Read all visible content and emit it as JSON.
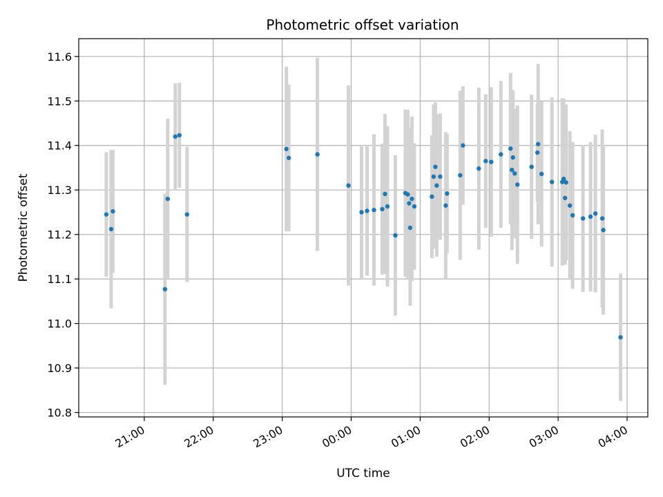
{
  "chart_data": {
    "type": "scatter",
    "title": "Photometric offset variation",
    "xlabel": "UTC time",
    "ylabel": "Photometric offset",
    "x_unit": "hours since 20:00 UTC",
    "xlim": [
      0.05,
      8.3
    ],
    "ylim": [
      10.79,
      11.64
    ],
    "grid": true,
    "x_ticks": [
      {
        "value": 1,
        "label": "21:00"
      },
      {
        "value": 2,
        "label": "22:00"
      },
      {
        "value": 3,
        "label": "23:00"
      },
      {
        "value": 4,
        "label": "00:00"
      },
      {
        "value": 5,
        "label": "01:00"
      },
      {
        "value": 6,
        "label": "02:00"
      },
      {
        "value": 7,
        "label": "03:00"
      },
      {
        "value": 8,
        "label": "04:00"
      }
    ],
    "y_ticks": [
      {
        "value": 10.8,
        "label": "10.8"
      },
      {
        "value": 10.9,
        "label": "10.9"
      },
      {
        "value": 11.0,
        "label": "11.0"
      },
      {
        "value": 11.1,
        "label": "11.1"
      },
      {
        "value": 11.2,
        "label": "11.2"
      },
      {
        "value": 11.3,
        "label": "11.3"
      },
      {
        "value": 11.4,
        "label": "11.4"
      },
      {
        "value": 11.5,
        "label": "11.5"
      },
      {
        "value": 11.6,
        "label": "11.6"
      }
    ],
    "colors": {
      "points": "#1f77b4",
      "errorbars": "#d3d3d3",
      "grid": "#b0b0b0"
    },
    "series": [
      {
        "points": [
          [
            0.45,
            11.245,
            0.14
          ],
          [
            0.52,
            11.212,
            0.178
          ],
          [
            0.545,
            11.252,
            0.138
          ],
          [
            1.3,
            11.077,
            0.215
          ],
          [
            1.34,
            11.28,
            0.18
          ],
          [
            1.45,
            11.42,
            0.12
          ],
          [
            1.51,
            11.423,
            0.118
          ],
          [
            1.62,
            11.245,
            0.152
          ],
          [
            3.06,
            11.392,
            0.185
          ],
          [
            3.095,
            11.372,
            0.165
          ],
          [
            3.51,
            11.38,
            0.217
          ],
          [
            3.96,
            11.31,
            0.225
          ],
          [
            4.15,
            11.25,
            0.148
          ],
          [
            4.23,
            11.253,
            0.145
          ],
          [
            4.33,
            11.255,
            0.17
          ],
          [
            4.45,
            11.257,
            0.147
          ],
          [
            4.49,
            11.291,
            0.18
          ],
          [
            4.525,
            11.263,
            0.18
          ],
          [
            4.64,
            11.198,
            0.18
          ],
          [
            4.785,
            11.293,
            0.188
          ],
          [
            4.82,
            11.29,
            0.19
          ],
          [
            4.84,
            11.27,
            0.17
          ],
          [
            4.855,
            11.215,
            0.175
          ],
          [
            4.88,
            11.28,
            0.185
          ],
          [
            4.915,
            11.263,
            0.142
          ],
          [
            5.17,
            11.285,
            0.138
          ],
          [
            5.195,
            11.33,
            0.162
          ],
          [
            5.22,
            11.352,
            0.145
          ],
          [
            5.24,
            11.31,
            0.16
          ],
          [
            5.29,
            11.33,
            0.142
          ],
          [
            5.37,
            11.265,
            0.165
          ],
          [
            5.39,
            11.292,
            0.134
          ],
          [
            5.58,
            11.333,
            0.19
          ],
          [
            5.62,
            11.4,
            0.133
          ],
          [
            5.85,
            11.348,
            0.182
          ],
          [
            5.95,
            11.365,
            0.15
          ],
          [
            6.03,
            11.363,
            0.168
          ],
          [
            6.17,
            11.38,
            0.165
          ],
          [
            6.31,
            11.393,
            0.17
          ],
          [
            6.33,
            11.345,
            0.18
          ],
          [
            6.345,
            11.373,
            0.15
          ],
          [
            6.37,
            11.337,
            0.145
          ],
          [
            6.41,
            11.312,
            0.178
          ],
          [
            6.615,
            11.352,
            0.162
          ],
          [
            6.7,
            11.384,
            0.11
          ],
          [
            6.71,
            11.403,
            0.18
          ],
          [
            6.76,
            11.336,
            0.163
          ],
          [
            6.91,
            11.318,
            0.19
          ],
          [
            7.06,
            11.318,
            0.188
          ],
          [
            7.08,
            11.325,
            0.18
          ],
          [
            7.1,
            11.282,
            0.15
          ],
          [
            7.115,
            11.317,
            0.175
          ],
          [
            7.17,
            11.265,
            0.167
          ],
          [
            7.21,
            11.243,
            0.165
          ],
          [
            7.36,
            11.236,
            0.165
          ],
          [
            7.47,
            11.24,
            0.168
          ],
          [
            7.54,
            11.247,
            0.177
          ],
          [
            7.64,
            11.236,
            0.2
          ],
          [
            7.655,
            11.21,
            0.19
          ],
          [
            7.905,
            10.969,
            0.143
          ]
        ]
      }
    ]
  }
}
